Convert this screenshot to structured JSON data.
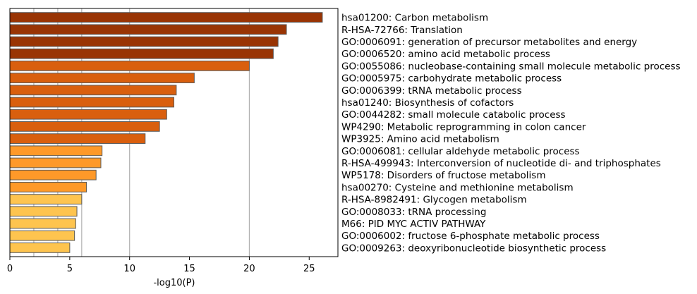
{
  "chart_data": {
    "type": "bar",
    "orientation": "horizontal",
    "xlabel": "-log10(P)",
    "xlim": [
      0,
      27.4
    ],
    "xticks": [
      0,
      5,
      10,
      15,
      20,
      25
    ],
    "vertical_gridlines": [
      2,
      4,
      6,
      10,
      20
    ],
    "grid": true,
    "categories": [
      "hsa01200: Carbon metabolism",
      "R-HSA-72766: Translation",
      "GO:0006091: generation of precursor metabolites and energy",
      "GO:0006520: amino acid metabolic process",
      "GO:0055086: nucleobase-containing small molecule metabolic process",
      "GO:0005975: carbohydrate metabolic process",
      "GO:0006399: tRNA metabolic process",
      "hsa01240: Biosynthesis of cofactors",
      "GO:0044282: small molecule catabolic process",
      "WP4290: Metabolic reprogramming in colon cancer",
      "WP3925: Amino acid metabolism",
      "GO:0006081: cellular aldehyde metabolic process",
      "R-HSA-499943: Interconversion of nucleotide di- and triphosphates",
      "WP5178: Disorders of fructose metabolism",
      "hsa00270: Cysteine and methionine metabolism",
      "R-HSA-8982491: Glycogen metabolism",
      "GO:0008033: tRNA processing",
      "M66: PID MYC ACTIV PATHWAY",
      "GO:0006002: fructose 6-phosphate metabolic process",
      "GO:0009263: deoxyribonucleotide biosynthetic process"
    ],
    "values": [
      26.1,
      23.1,
      22.4,
      22.0,
      20.0,
      15.4,
      13.9,
      13.7,
      13.1,
      12.5,
      11.3,
      7.7,
      7.6,
      7.2,
      6.4,
      6.0,
      5.6,
      5.5,
      5.4,
      5.0
    ],
    "bar_colors": [
      "#993404",
      "#993404",
      "#993404",
      "#993404",
      "#d95f0e",
      "#d95f0e",
      "#d95f0e",
      "#d95f0e",
      "#d95f0e",
      "#d95f0e",
      "#d95f0e",
      "#fe9929",
      "#fe9929",
      "#fe9929",
      "#fe9929",
      "#fec44f",
      "#fec44f",
      "#fec44f",
      "#fec44f",
      "#fec44f"
    ],
    "bar_edge_color": "#5a5a5a",
    "grid_color": "#b0b0b0"
  }
}
